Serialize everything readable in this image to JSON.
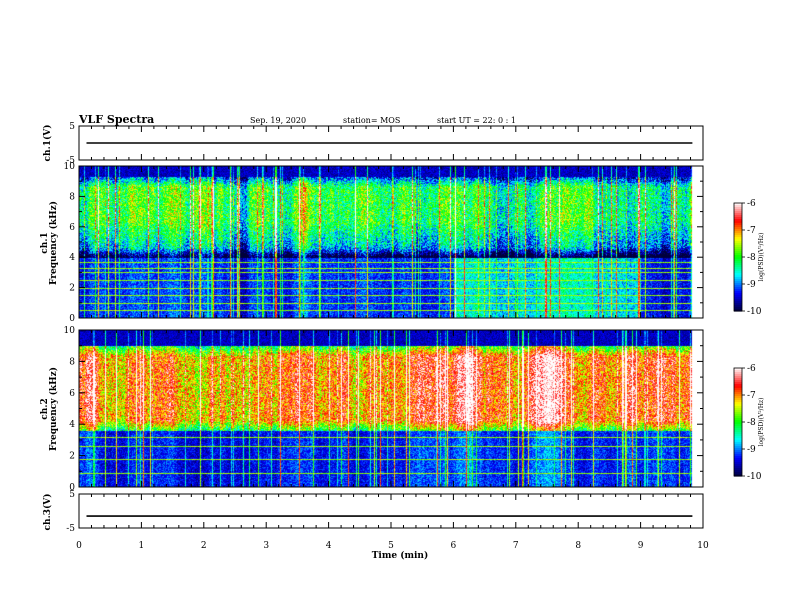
{
  "header": {
    "title": "VLF Spectra",
    "date": "Sep. 19, 2020",
    "station": "station= MOS",
    "start": "start UT =  22: 0  : 1"
  },
  "chart_data": {
    "type": "heatmap",
    "xlabel": "Time (min)",
    "xlim": [
      0,
      10
    ],
    "xticks": [
      "0",
      "1",
      "2",
      "3",
      "4",
      "5",
      "6",
      "7",
      "8",
      "9",
      "10"
    ],
    "data_end_min": 9.83,
    "panels": [
      {
        "id": "ch1-voltage",
        "kind": "trace",
        "ylabel": "ch.1(V)",
        "ylim": [
          -5,
          5
        ],
        "yticks": [
          "5",
          "-5"
        ],
        "level": 0
      },
      {
        "id": "ch1-spectrogram",
        "kind": "spectrogram",
        "ylabel": "ch.1",
        "ylabel2": "Frequency (kHz)",
        "ylim": [
          0,
          10
        ],
        "yticks": [
          "0",
          "2",
          "4",
          "6",
          "8",
          "10"
        ],
        "band_low_khz": 4.0,
        "band_high_khz": 9.3,
        "band_level": 0.45,
        "horizontal_lines_khz": [
          0.5,
          1.0,
          1.5,
          2.0,
          2.5,
          3.0,
          3.3,
          3.7
        ]
      },
      {
        "id": "ch2-spectrogram",
        "kind": "spectrogram",
        "ylabel": "ch.2",
        "ylabel2": "Frequency (kHz)",
        "ylim": [
          0,
          10
        ],
        "yticks": [
          "0",
          "2",
          "4",
          "6",
          "8",
          "10"
        ],
        "band_low_khz": 3.6,
        "band_high_khz": 9.0,
        "band_level": 0.78,
        "horizontal_lines_khz": [
          0.9,
          1.8,
          2.6,
          3.2
        ]
      },
      {
        "id": "ch3-voltage",
        "kind": "trace",
        "ylabel": "ch.3(V)",
        "ylim": [
          -5,
          5
        ],
        "yticks": [
          "5",
          "-5"
        ],
        "level": -1.5
      }
    ],
    "colorbar": {
      "label": "log(PSD)(V²/Hz)",
      "range": [
        -10,
        -6
      ],
      "ticks": [
        "-6",
        "-7",
        "-8",
        "-9",
        "-10"
      ],
      "colors": [
        "#00003c",
        "#0000ff",
        "#00ffff",
        "#00ff00",
        "#ffff00",
        "#ff0000",
        "#ffffff"
      ]
    }
  }
}
